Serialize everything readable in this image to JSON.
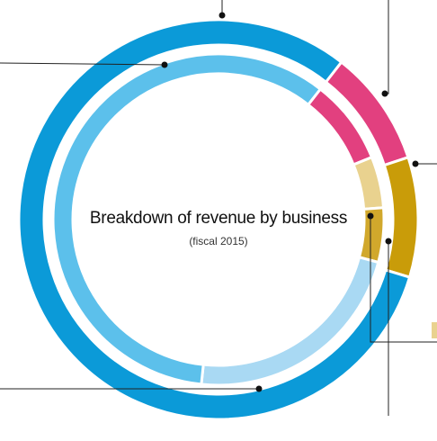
{
  "chart_data": {
    "type": "donut",
    "title": "Breakdown of revenue by business",
    "subtitle": "(fiscal 2015)",
    "series": [
      {
        "colors": [
          "#e2407f",
          "#c99c09",
          "#0b9ad8"
        ],
        "values": [
          9.4,
          9.7,
          80.9
        ]
      },
      {
        "colors": [
          "#e2407f",
          "#e9d28f",
          "#d1a82c",
          "#a9d9f3",
          "#5cc0eb"
        ],
        "values": [
          8.3,
          5.0,
          5.3,
          22.5,
          58.9
        ]
      }
    ]
  }
}
